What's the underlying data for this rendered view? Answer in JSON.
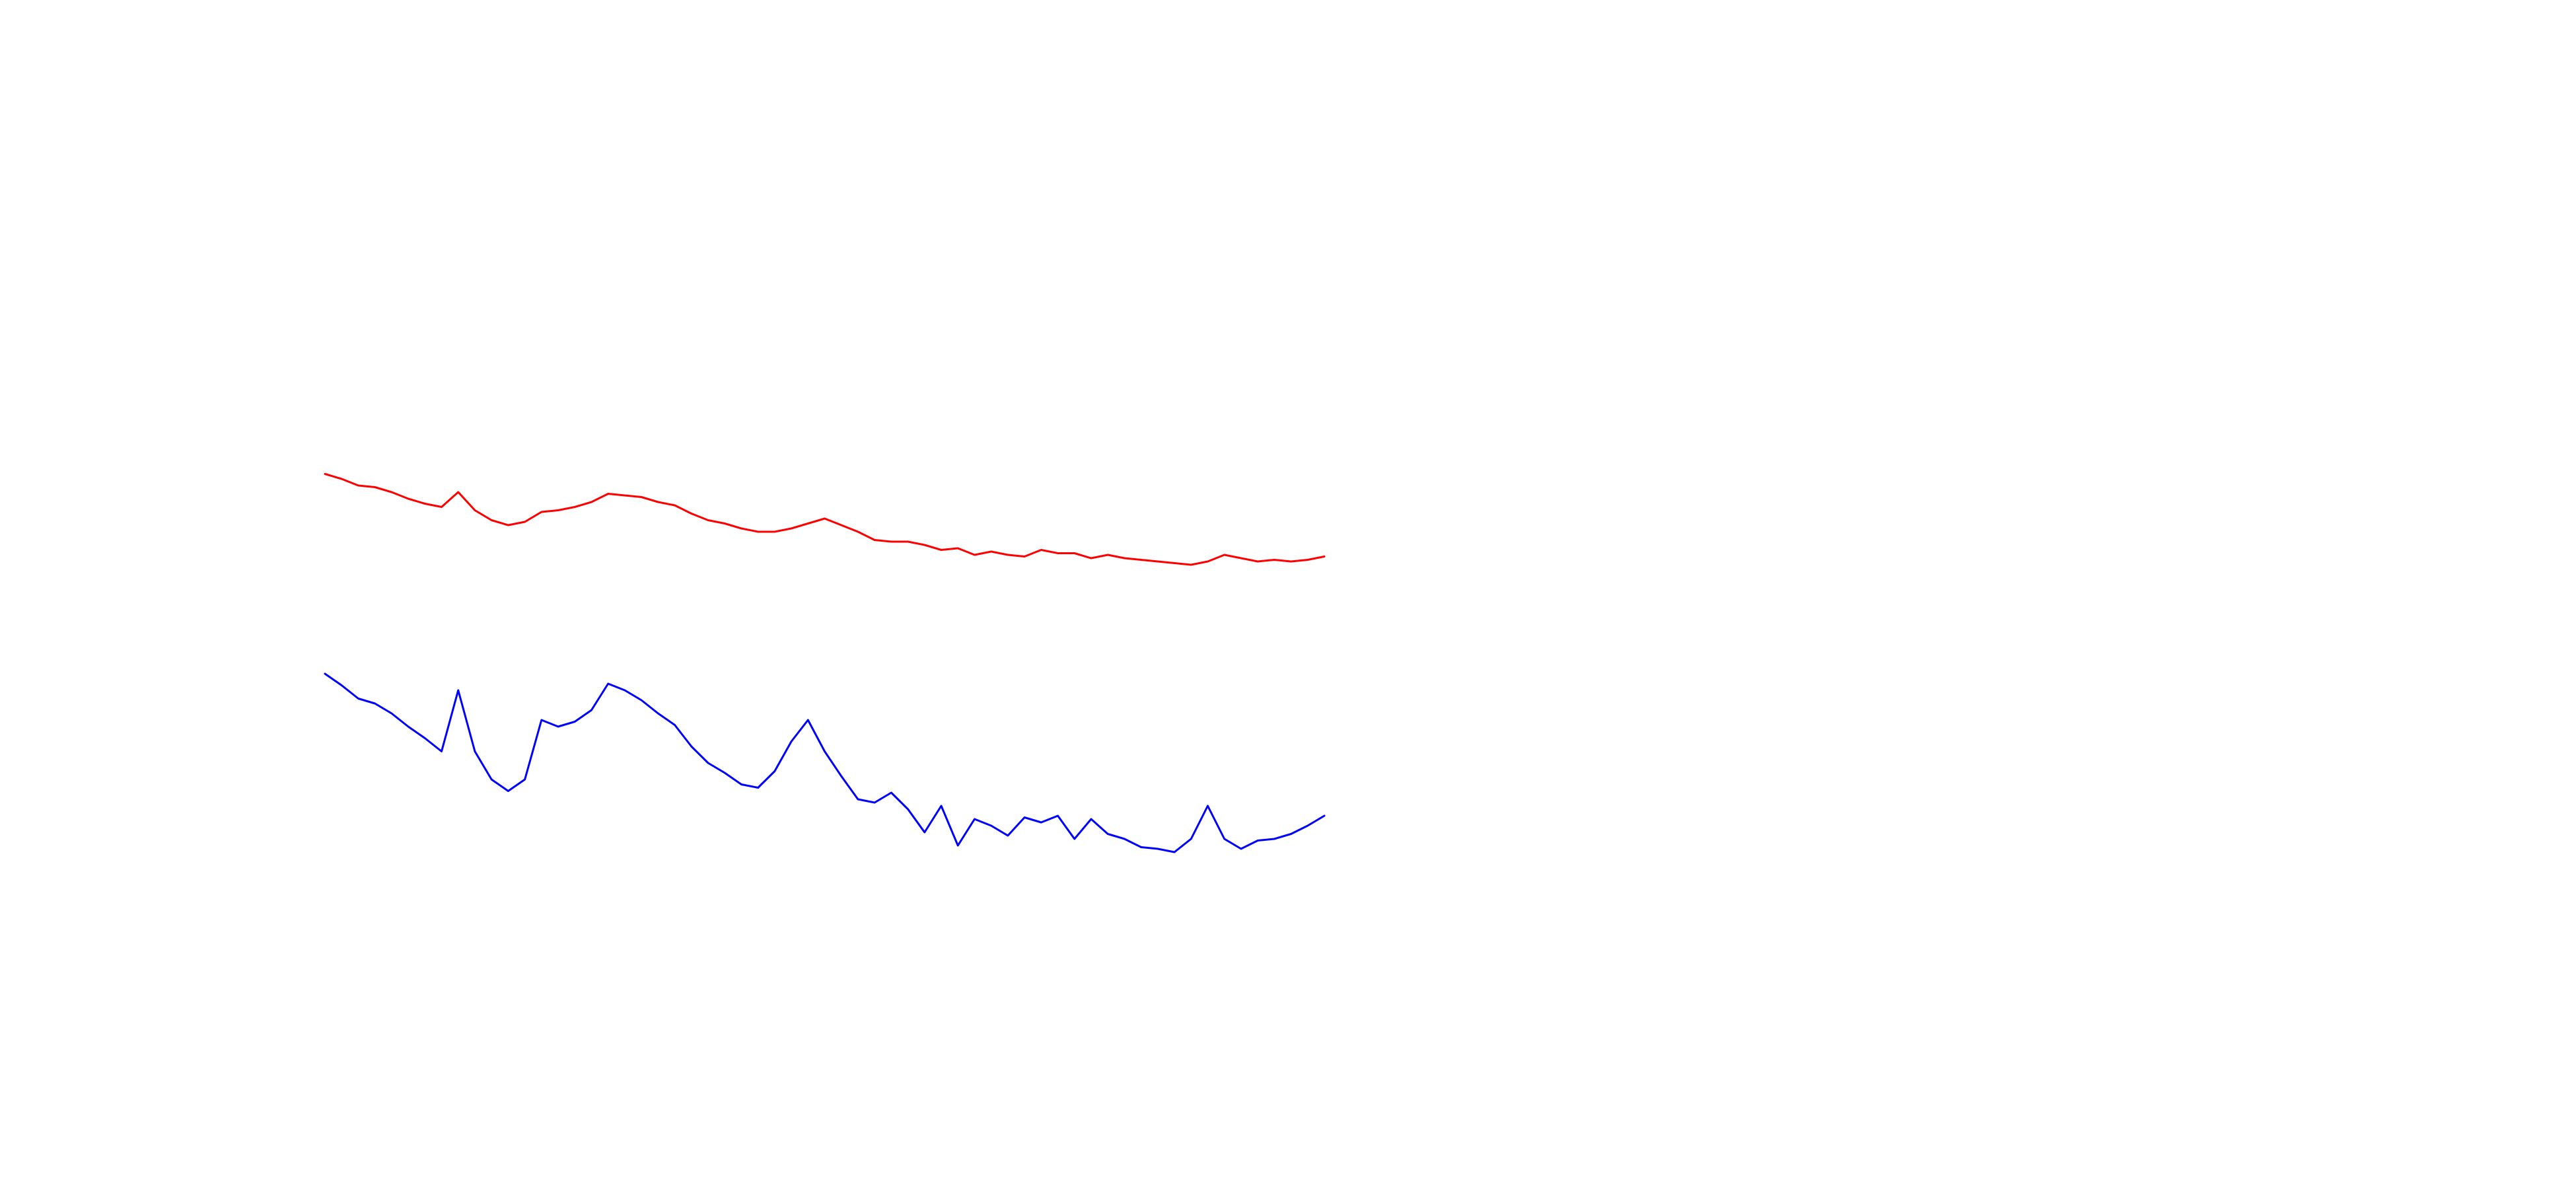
{
  "chart_data": {
    "type": "line",
    "ylim": [
      0,
      720
    ],
    "series": [
      {
        "color": "#ff0000",
        "values": [
          433,
          430,
          426,
          425,
          422,
          418,
          415,
          413,
          422,
          411,
          405,
          402,
          404,
          410,
          411,
          413,
          416,
          421,
          420,
          419,
          416,
          414,
          409,
          405,
          403,
          400,
          398,
          398,
          400,
          403,
          406,
          402,
          398,
          393,
          392,
          392,
          390,
          387,
          388,
          384,
          386,
          384,
          383,
          387,
          385,
          385,
          382,
          384,
          382,
          381,
          380,
          379,
          378,
          380,
          384,
          382,
          380,
          381,
          380,
          381,
          383
        ]
      },
      {
        "color": "#0000ff",
        "values": [
          312,
          305,
          297,
          294,
          288,
          280,
          273,
          265,
          302,
          265,
          248,
          241,
          248,
          284,
          280,
          283,
          290,
          306,
          302,
          296,
          288,
          281,
          268,
          258,
          252,
          245,
          243,
          253,
          271,
          284,
          265,
          250,
          236,
          234,
          240,
          230,
          216,
          232,
          208,
          224,
          220,
          214,
          225,
          222,
          226,
          212,
          224,
          215,
          212,
          207,
          206,
          204,
          212,
          232,
          212,
          206,
          211,
          212,
          215,
          220,
          226
        ]
      }
    ]
  }
}
